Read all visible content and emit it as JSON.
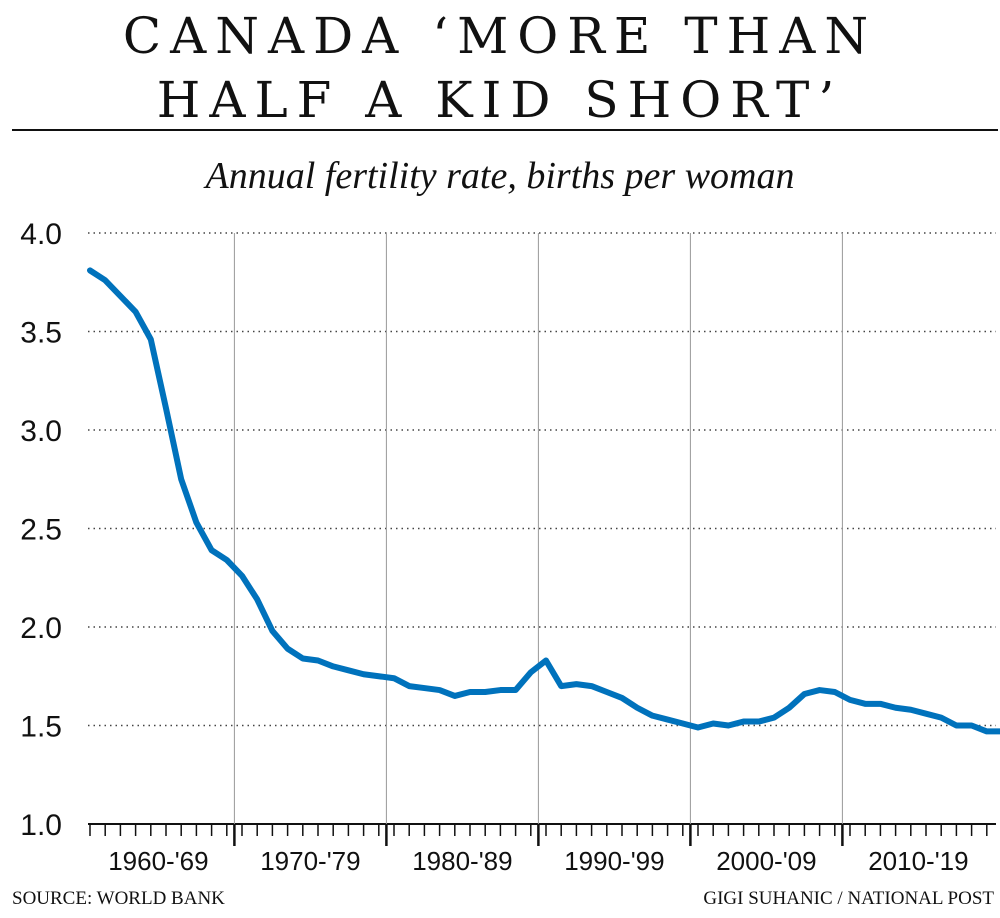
{
  "header": {
    "title_line1": "CANADA ‘MORE THAN",
    "title_line2": "HALF A KID SHORT’"
  },
  "footer": {
    "source": "SOURCE: WORLD BANK",
    "credit": "GIGI SUHANIC / NATIONAL POST"
  },
  "chart_data": {
    "type": "line",
    "title": "CANADA ‘MORE THAN HALF A KID SHORT’",
    "subtitle": "Annual fertility rate, births per woman",
    "xlabel": "",
    "ylabel": "",
    "ylim": [
      1.0,
      4.0
    ],
    "yticks": [
      "1.0",
      "1.5",
      "2.0",
      "2.5",
      "3.0",
      "3.5",
      "4.0"
    ],
    "decade_labels": [
      "1960-'69",
      "1970-'79",
      "1980-'89",
      "1990-'99",
      "2000-'09",
      "2010-'19"
    ],
    "grid": true,
    "line_color": "#0072bc",
    "series": [
      {
        "x": [
          1960,
          1961,
          1962,
          1963,
          1964,
          1965,
          1966,
          1967,
          1968,
          1969,
          1970,
          1971,
          1972,
          1973,
          1974,
          1975,
          1976,
          1977,
          1978,
          1979,
          1980,
          1981,
          1982,
          1983,
          1984,
          1985,
          1986,
          1987,
          1988,
          1989,
          1990,
          1991,
          1992,
          1993,
          1994,
          1995,
          1996,
          1997,
          1998,
          1999,
          2000,
          2001,
          2002,
          2003,
          2004,
          2005,
          2006,
          2007,
          2008,
          2009,
          2010,
          2011,
          2012,
          2013,
          2014,
          2015,
          2016,
          2017,
          2018,
          2019,
          2020
        ],
        "values": [
          3.81,
          3.76,
          3.68,
          3.6,
          3.46,
          3.11,
          2.75,
          2.53,
          2.39,
          2.34,
          2.26,
          2.14,
          1.98,
          1.89,
          1.84,
          1.83,
          1.8,
          1.78,
          1.76,
          1.75,
          1.74,
          1.7,
          1.69,
          1.68,
          1.65,
          1.67,
          1.67,
          1.68,
          1.68,
          1.77,
          1.83,
          1.7,
          1.71,
          1.7,
          1.67,
          1.64,
          1.59,
          1.55,
          1.53,
          1.51,
          1.49,
          1.51,
          1.5,
          1.52,
          1.52,
          1.54,
          1.59,
          1.66,
          1.68,
          1.67,
          1.63,
          1.61,
          1.61,
          1.59,
          1.58,
          1.56,
          1.54,
          1.5,
          1.5,
          1.47,
          1.47
        ]
      }
    ]
  }
}
